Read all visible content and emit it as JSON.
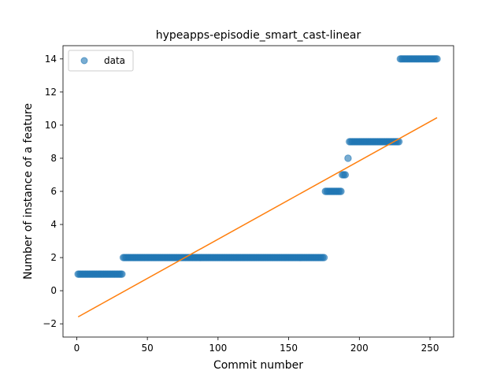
{
  "chart_data": {
    "type": "scatter",
    "title": "hypeapps-episodie_smart_cast-linear",
    "xlabel": "Commit number",
    "ylabel": "Number of instance of a feature",
    "xlim": [
      -9.7,
      266.7
    ],
    "ylim": [
      -2.8,
      14.8
    ],
    "xticks": [
      0,
      50,
      100,
      150,
      200,
      250
    ],
    "yticks": [
      -2,
      0,
      2,
      4,
      6,
      8,
      10,
      12,
      14
    ],
    "legend": {
      "position": "top-left",
      "entries": [
        "data"
      ]
    },
    "colors": {
      "points": "#1f77b4",
      "fit": "#ff7f0e"
    },
    "grid": false,
    "series": [
      {
        "name": "data",
        "kind": "points",
        "segments": [
          {
            "x_start": 1,
            "x_end": 32,
            "y": 1
          },
          {
            "x_start": 33,
            "x_end": 175,
            "y": 2
          },
          {
            "x_start": 176,
            "x_end": 187,
            "y": 6
          },
          {
            "x_start": 188,
            "x_end": 190,
            "y": 7
          },
          {
            "x_start": 192,
            "x_end": 192,
            "y": 8
          },
          {
            "x_start": 193,
            "x_end": 228,
            "y": 9
          },
          {
            "x_start": 229,
            "x_end": 255,
            "y": 14
          }
        ]
      },
      {
        "name": "",
        "kind": "line",
        "x": [
          1,
          255
        ],
        "y": [
          -1.58,
          10.45
        ]
      }
    ]
  }
}
